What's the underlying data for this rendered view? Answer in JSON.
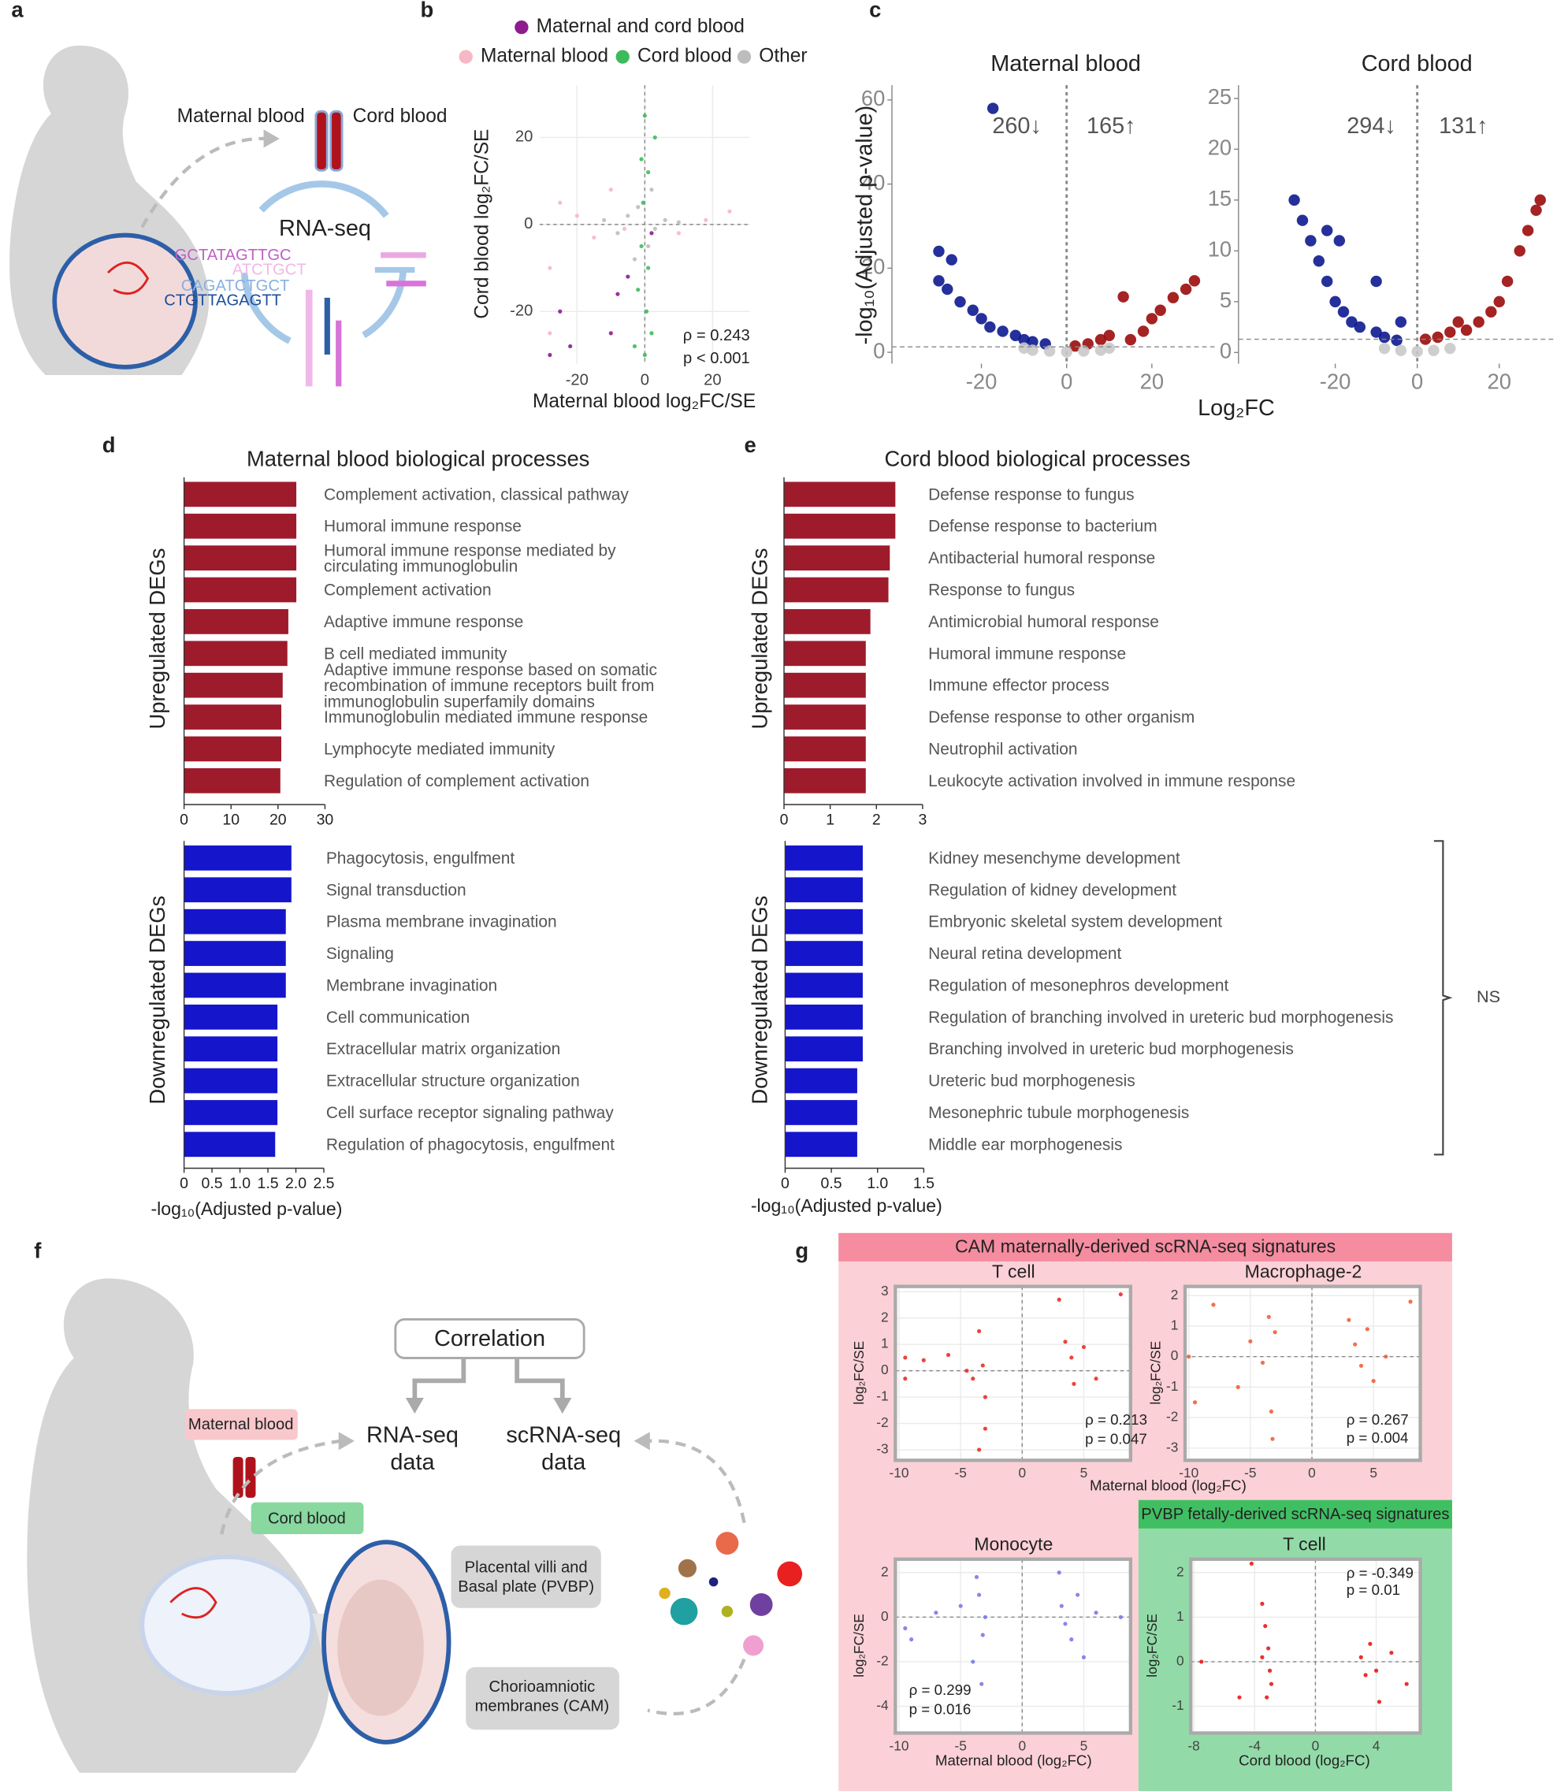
{
  "panels": [
    "a",
    "b",
    "c",
    "d",
    "e",
    "f",
    "g"
  ],
  "diagram_a": {
    "maternal": "Maternal blood",
    "cord": "Cord blood",
    "method": "RNA-seq",
    "sequences": [
      "GCTATAGTTGC",
      "ATCTGCT",
      "CAGATCTGCT",
      "CTGTTAGAGTT"
    ]
  },
  "diagram_f": {
    "correlation": "Correlation",
    "rna": [
      "RNA-seq",
      "data"
    ],
    "scrna": [
      "scRNA-seq",
      "data"
    ],
    "maternal": "Maternal blood",
    "cord": "Cord blood",
    "pvbp": [
      "Placental villi and",
      "Basal plate (PVBP)"
    ],
    "cam": [
      "Chorioamniotic",
      "membranes (CAM)"
    ]
  },
  "g_headers": [
    "CAM maternally-derived scRNA-seq signatures",
    "PVBP fetally-derived scRNA-seq signatures"
  ],
  "chart_data": [
    {
      "type": "scatter",
      "xlabel": "Maternal blood log₂FC/SE",
      "ylabel": "Cord blood log₂FC/SE",
      "xlim": [
        -31,
        31
      ],
      "ylim": [
        -32,
        32
      ],
      "xticks": [
        -20,
        0,
        20
      ],
      "yticks": [
        -20,
        0,
        20
      ],
      "grid": true,
      "zero_lines": true,
      "annotations": [
        "ρ = 0.243",
        "p < 0.001"
      ],
      "series": [
        {
          "name": "Maternal and cord blood",
          "color": "#8e1c8e",
          "x": [
            -25,
            -22,
            -5,
            -8,
            2,
            -28,
            -10
          ],
          "values": [
            -20,
            -28,
            -12,
            -16,
            -2,
            -30,
            -25
          ]
        },
        {
          "name": "Maternal blood",
          "color": "#f5b8c4",
          "x": [
            -20,
            -15,
            -25,
            10,
            18,
            -28,
            -28,
            -10,
            25,
            -6
          ],
          "values": [
            2,
            -3,
            5,
            -2,
            1,
            -10,
            -25,
            8,
            3,
            -1
          ]
        },
        {
          "name": "Cord blood",
          "color": "#3dbb5c",
          "x": [
            0,
            1,
            -1,
            0.5,
            -0.5,
            2,
            -2,
            1,
            0,
            -1,
            3,
            -3
          ],
          "values": [
            25,
            -10,
            15,
            -20,
            5,
            -25,
            -15,
            12,
            -30,
            -5,
            20,
            -28
          ]
        },
        {
          "name": "Other",
          "color": "#bdbdbd",
          "x": [
            -5,
            3,
            -2,
            6,
            -8,
            1,
            10,
            -12,
            2,
            -3
          ],
          "values": [
            2,
            -1,
            4,
            1,
            -2,
            -5,
            0.5,
            1,
            8,
            -8
          ]
        }
      ]
    },
    {
      "type": "scatter",
      "title": "Maternal blood",
      "ylabel": "-log₁₀(Adjusted p-value)",
      "xlabel": "Log₂FC",
      "xlim": [
        -41,
        35
      ],
      "ylim": [
        -2.7,
        63.5
      ],
      "xticks": [
        -20,
        0,
        20
      ],
      "yticks": [
        0,
        20,
        40,
        60
      ],
      "threshold": 1.3,
      "annotations": [
        "260↓",
        "165↑"
      ],
      "series": [
        {
          "color": "#0d1a8f",
          "x": [
            -30,
            -27,
            -30,
            -28,
            -25,
            -22,
            -20,
            -18,
            -15,
            -12,
            -10,
            -8,
            -5,
            -17.3
          ],
          "values": [
            24,
            22,
            17,
            15,
            12,
            10,
            8,
            6,
            5,
            4,
            3,
            2.5,
            2,
            58
          ]
        },
        {
          "color": "#9b0b0b",
          "x": [
            2,
            5,
            8,
            10,
            13.3,
            15,
            18,
            20,
            22,
            25,
            28,
            30
          ],
          "values": [
            1.5,
            2,
            3,
            4,
            13.2,
            3,
            5,
            8,
            10,
            13,
            15,
            17
          ]
        },
        {
          "color": "#c9c9c9",
          "x": [
            -8,
            -4,
            0,
            4,
            8,
            -10,
            10
          ],
          "values": [
            0.5,
            0.3,
            0.1,
            0.3,
            0.5,
            1,
            1
          ]
        }
      ]
    },
    {
      "type": "scatter",
      "title": "Cord blood",
      "xlim": [
        -43.6,
        34
      ],
      "ylim": [
        -1.1,
        26.3
      ],
      "xticks": [
        -20,
        0,
        20
      ],
      "yticks": [
        0,
        5,
        10,
        15,
        20,
        25
      ],
      "threshold": 1.3,
      "annotations": [
        "294↓",
        "131↑"
      ],
      "series": [
        {
          "color": "#0d1a8f",
          "x": [
            -30,
            -28,
            -26,
            -24,
            -22,
            -20,
            -18,
            -16,
            -14,
            -10,
            -8,
            -5,
            -22,
            -19,
            -10,
            -4
          ],
          "values": [
            15,
            13,
            11,
            9,
            7,
            5,
            4,
            3,
            2.5,
            2,
            1.5,
            1.2,
            12,
            11,
            7,
            3
          ]
        },
        {
          "color": "#9b0b0b",
          "x": [
            2,
            5,
            8,
            10,
            12,
            15,
            18,
            20,
            22,
            25,
            27,
            29,
            30
          ],
          "values": [
            1.3,
            1.5,
            2,
            3,
            2.2,
            3,
            4,
            5,
            7,
            10,
            12,
            14,
            15
          ]
        },
        {
          "color": "#c9c9c9",
          "x": [
            -8,
            -4,
            0,
            4,
            8
          ],
          "values": [
            0.4,
            0.2,
            0.1,
            0.2,
            0.4
          ]
        }
      ]
    },
    {
      "type": "bar",
      "title": "Maternal blood biological processes",
      "ylabel": "Upregulated DEGs",
      "color": "#9e1b2c",
      "categories": [
        "Complement activation, classical pathway",
        "Humoral immune response",
        "Humoral immune response mediated by circulating immunoglobulin",
        "Complement activation",
        "Adaptive immune response",
        "B cell mediated immunity",
        "Adaptive immune response based on somatic recombination of immune receptors built from immunoglobulin superfamily domains",
        "Immunoglobulin mediated immune response",
        "Lymphocyte mediated immunity",
        "Regulation of complement activation"
      ],
      "values": [
        23.9,
        23.9,
        23.9,
        23.9,
        22.2,
        22,
        21,
        20.7,
        20.7,
        20.5
      ],
      "xlim": [
        0,
        30
      ],
      "xticks": [
        0,
        10,
        20,
        30
      ]
    },
    {
      "type": "bar",
      "ylabel": "Downregulated DEGs",
      "xlabel": "-log₁₀(Adjusted p-value)",
      "color": "#1515cc",
      "categories": [
        "Phagocytosis, engulfment",
        "Signal transduction",
        "Plasma membrane invagination",
        "Signaling",
        "Membrane invagination",
        "Cell communication",
        "Extracellular matrix organization",
        "Extracellular structure organization",
        "Cell surface receptor signaling pathway",
        "Regulation of phagocytosis, engulfment"
      ],
      "values": [
        1.92,
        1.92,
        1.82,
        1.82,
        1.82,
        1.67,
        1.67,
        1.67,
        1.67,
        1.63
      ],
      "xlim": [
        0,
        2.5
      ],
      "xticks": [
        0,
        0.5,
        {
          "value": 1,
          "label": "1.0"
        },
        1.5,
        {
          "value": 2,
          "label": "2.0"
        },
        2.5
      ]
    },
    {
      "type": "bar",
      "title": "Cord blood biological processes",
      "ylabel": "Upregulated DEGs",
      "color": "#9e1b2c",
      "categories": [
        "Defense response to fungus",
        "Defense response to bacterium",
        "Antibacterial humoral response",
        "Response to fungus",
        "Antimicrobial humoral response",
        "Humoral immune response",
        "Immune effector process",
        "Defense response to other organism",
        "Neutrophil activation",
        "Leukocyte activation involved in immune response"
      ],
      "values": [
        2.41,
        2.41,
        2.29,
        2.26,
        1.87,
        1.77,
        1.77,
        1.77,
        1.77,
        1.77
      ],
      "xlim": [
        0,
        3
      ],
      "xticks": [
        0,
        1,
        2,
        3
      ]
    },
    {
      "type": "bar",
      "ylabel": "Downregulated DEGs",
      "xlabel": "-log₁₀(Adjusted p-value)",
      "color": "#1515cc",
      "annotation": "NS",
      "categories": [
        "Kidney mesenchyme development",
        "Regulation of kidney development",
        "Embryonic skeletal system development",
        "Neural retina development",
        "Regulation of mesonephros development",
        "Regulation of branching involved in ureteric bud morphogenesis",
        "Branching involved in ureteric bud morphogenesis",
        "Ureteric bud morphogenesis",
        "Mesonephric tubule morphogenesis",
        "Middle ear morphogenesis"
      ],
      "values": [
        0.84,
        0.84,
        0.84,
        0.84,
        0.84,
        0.84,
        0.84,
        0.78,
        0.78,
        0.78
      ],
      "xlim": [
        0,
        1.5
      ],
      "xticks": [
        0,
        0.5,
        {
          "value": 1,
          "label": "1.0"
        },
        1.5
      ]
    },
    {
      "type": "scatter",
      "title": "T cell",
      "ylabel": "log₂FC/SE",
      "grid": true,
      "zero_lines": true,
      "xlim": [
        -10.3,
        8.8
      ],
      "ylim": [
        -3.4,
        3.2
      ],
      "xticks": [
        -10,
        -5,
        0,
        5
      ],
      "yticks": [
        -3,
        -2,
        -1,
        0,
        1,
        2,
        3
      ],
      "annotations": [
        "ρ = 0.213",
        "p = 0.047"
      ],
      "series": [
        {
          "color": "#e8302a",
          "x": [
            -9.5,
            -9.5,
            -8,
            -6,
            -4.5,
            -4,
            -3.5,
            -3,
            -3,
            -3.2,
            -3.5,
            3,
            3.5,
            4,
            4.2,
            5,
            6,
            8
          ],
          "values": [
            0.5,
            -0.3,
            0.4,
            0.6,
            0,
            -0.3,
            1.5,
            -1,
            -2.2,
            0.2,
            -3,
            2.7,
            1.1,
            0.5,
            -0.5,
            0.9,
            -0.3,
            2.9
          ]
        }
      ]
    },
    {
      "type": "scatter",
      "title": "Macrophage-2",
      "ylabel": "log₂FC/SE",
      "xlabel": "Maternal blood (log₂FC)",
      "grid": true,
      "zero_lines": true,
      "xlim": [
        -10.3,
        8.8
      ],
      "ylim": [
        -3.4,
        2.3
      ],
      "xticks": [
        -10,
        -5,
        0,
        5
      ],
      "yticks": [
        -3,
        -2,
        -1,
        0,
        1,
        2
      ],
      "annotations": [
        "ρ = 0.267",
        "p = 0.004"
      ],
      "series": [
        {
          "color": "#f0603a",
          "x": [
            -10,
            -9.5,
            -8,
            -6,
            -5,
            -4,
            -3.5,
            -3.2,
            -3,
            -3.3,
            3,
            3.5,
            4,
            4.5,
            5,
            6,
            8
          ],
          "values": [
            0,
            -1.5,
            1.7,
            -1,
            0.5,
            -0.2,
            1.3,
            -2.7,
            0.8,
            -1.8,
            1.2,
            0.4,
            -0.3,
            0.9,
            -0.8,
            0,
            1.8
          ]
        }
      ]
    },
    {
      "type": "scatter",
      "title": "Monocyte",
      "ylabel": "log₂FC/SE",
      "xlabel": "Maternal blood (log₂FC)",
      "grid": true,
      "zero_lines": true,
      "xlim": [
        -10.3,
        8.8
      ],
      "ylim": [
        -5.2,
        2.6
      ],
      "xticks": [
        -10,
        -5,
        0,
        5
      ],
      "yticks": [
        -4,
        -2,
        0,
        2
      ],
      "annotations": [
        "ρ = 0.299",
        "p = 0.016"
      ],
      "series": [
        {
          "color": "#7a7ae8",
          "x": [
            -9.5,
            -9,
            -7,
            -5,
            -4,
            -3.5,
            -3.2,
            -3,
            -3.3,
            -3.7,
            3,
            3.2,
            3.5,
            4,
            4.5,
            5,
            6,
            8
          ],
          "values": [
            -0.5,
            -1,
            0.2,
            0.5,
            -2,
            1,
            -0.8,
            0,
            -3,
            1.8,
            2,
            0.5,
            -0.3,
            -1,
            1,
            -1.8,
            0.2,
            0
          ]
        }
      ]
    },
    {
      "type": "scatter",
      "title": "T cell",
      "ylabel": "log₂FC/SE",
      "xlabel": "Cord blood (log₂FC)",
      "grid": true,
      "zero_lines": true,
      "xlim": [
        -8.2,
        6.9
      ],
      "ylim": [
        -1.6,
        2.3
      ],
      "xticks": [
        -8,
        -4,
        0,
        4
      ],
      "yticks": [
        -1,
        0,
        1,
        2
      ],
      "annotations": [
        "ρ = -0.349",
        "p = 0.01"
      ],
      "series": [
        {
          "color": "#e81a1a",
          "x": [
            -7.5,
            -5,
            -4.2,
            -3.5,
            -3.3,
            -3.1,
            -3,
            -2.9,
            -3.2,
            -3.5,
            3,
            3.3,
            3.6,
            4,
            4.2,
            5,
            6
          ],
          "values": [
            0,
            -0.8,
            2.2,
            1.3,
            0.8,
            0.3,
            -0.2,
            -0.5,
            -0.8,
            0.1,
            0.1,
            -0.3,
            0.4,
            -0.2,
            -0.9,
            0.2,
            -0.5
          ]
        }
      ]
    }
  ]
}
